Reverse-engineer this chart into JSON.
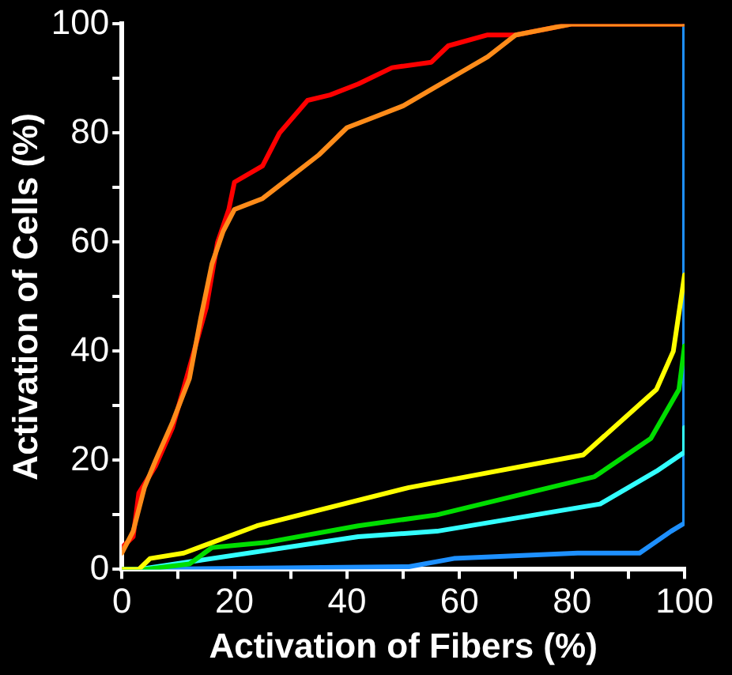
{
  "chart_data": {
    "type": "line",
    "xlabel": "Activation of Fibers (%)",
    "ylabel": "Activation of Cells (%)",
    "xlim": [
      0,
      100
    ],
    "ylim": [
      0,
      100
    ],
    "xticks": [
      0,
      {
        "value": 10,
        "label": null
      },
      20,
      {
        "value": 30,
        "label": null
      },
      40,
      {
        "value": 50,
        "label": null
      },
      60,
      {
        "value": 70,
        "label": null
      },
      80,
      {
        "value": 90,
        "label": null
      },
      100
    ],
    "yticks": [
      0,
      {
        "value": 10,
        "label": null
      },
      20,
      {
        "value": 30,
        "label": null
      },
      40,
      {
        "value": 50,
        "label": null
      },
      60,
      {
        "value": 70,
        "label": null
      },
      80,
      {
        "value": 90,
        "label": null
      },
      100
    ],
    "grid": false,
    "legend": false,
    "marker": "none",
    "line_style": "solid",
    "series": [
      {
        "color": "#ff8c1a",
        "x": [
          0,
          2,
          4,
          6,
          9,
          12,
          14,
          16,
          18,
          20,
          25,
          30,
          35,
          40,
          45,
          50,
          55,
          60,
          65,
          70,
          80,
          100
        ],
        "values": [
          3,
          7,
          15,
          20,
          27,
          35,
          46,
          56,
          62,
          66,
          68,
          72,
          76,
          81,
          83,
          85,
          88,
          91,
          94,
          98,
          100,
          100
        ]
      },
      {
        "color": "#ff0000",
        "x": [
          0,
          2,
          3,
          6,
          9,
          12,
          15,
          17,
          19,
          20,
          25,
          28,
          33,
          37,
          42,
          48,
          55,
          58,
          65,
          70,
          80,
          100
        ],
        "values": [
          4,
          6,
          14,
          19,
          26,
          37,
          48,
          60,
          66,
          71,
          74,
          80,
          86,
          87,
          89,
          92,
          93,
          96,
          98,
          98,
          100,
          100
        ]
      },
      {
        "color": "#ffff00",
        "x": [
          0,
          3,
          5,
          11,
          24,
          51,
          82,
          95,
          98,
          100
        ],
        "values": [
          0,
          0,
          2,
          3,
          8,
          15,
          21,
          33,
          40,
          54
        ]
      },
      {
        "color": "#00dd00",
        "x": [
          0,
          4,
          12,
          16,
          26,
          42,
          56,
          84,
          94,
          99,
          100
        ],
        "values": [
          0,
          0,
          1,
          4,
          5,
          8,
          10,
          17,
          24,
          33,
          41
        ]
      },
      {
        "color": "#33ffff",
        "x": [
          0,
          3,
          42,
          56,
          85,
          95,
          100,
          100
        ],
        "values": [
          0,
          0,
          6,
          7,
          12,
          18,
          21.5,
          26
        ]
      },
      {
        "color": "#1e90ff",
        "x": [
          0,
          51,
          59,
          81,
          92,
          97.6,
          100,
          100
        ],
        "values": [
          0,
          0.5,
          2,
          3,
          3,
          7,
          8.5,
          100
        ]
      }
    ]
  }
}
